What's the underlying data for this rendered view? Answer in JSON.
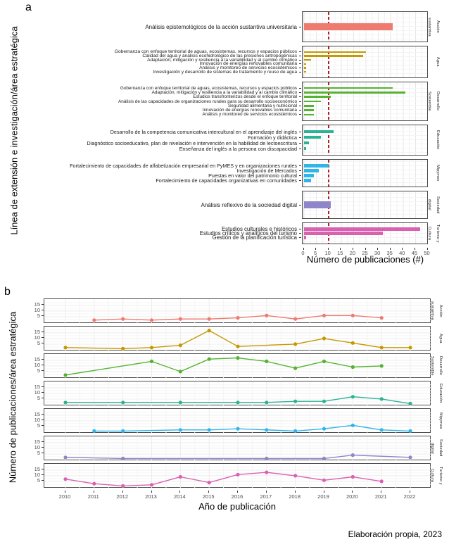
{
  "caption": "Elaboración propia, 2023",
  "chart_data": [
    {
      "id": "panel_a",
      "type": "bar",
      "orientation": "horizontal",
      "tag": "a",
      "ylabel": "Línea de extensión e investigación/área estratégica",
      "xlabel": "Número de publicaciones (#)",
      "xlim": [
        0,
        50
      ],
      "x_ticks": [
        0,
        5,
        10,
        15,
        20,
        25,
        30,
        35,
        40,
        45,
        50
      ],
      "grid": "on",
      "reference_line_x": 10,
      "reference_line_color": "#b01f24",
      "facets": [
        {
          "area": "Acción sustantiva",
          "color": "#ef7a70",
          "bars": [
            {
              "label": "Análisis epistemológicos de la acción sustantiva universitaria",
              "value": 36
            }
          ]
        },
        {
          "area": "Agua",
          "color": "#c49a00",
          "bars": [
            {
              "label": "Gobernanza con enfoque territorial de aguas, ecosistemas, recursos y espacios públicos",
              "value": 25
            },
            {
              "label": "Calidad del agua y análisis ecohidrológico de las presiones antropogénicas",
              "value": 24
            },
            {
              "label": "Adaptación, mitigación y resiliencia a la variabilidad y al cambio climático",
              "value": 3
            },
            {
              "label": "Innovación de energías renovables comunitaria",
              "value": 1
            },
            {
              "label": "Análisis y monitoreo de servicios ecosistémicos",
              "value": 1
            },
            {
              "label": "Investigación y desarrollo de sistemas de tratamiento y reuso de agua",
              "value": 1
            }
          ]
        },
        {
          "area": "Desarrollo Sostenible",
          "color": "#55b232",
          "bars": [
            {
              "label": "Gobernanza con enfoque territorial de aguas, ecosistemas, recursos y espacios públicos",
              "value": 36
            },
            {
              "label": "Adaptación, mitigación y resiliencia a la variabilidad y al cambio climático",
              "value": 41
            },
            {
              "label": "Estudios transfronterizos desde el enfoque territorial",
              "value": 11
            },
            {
              "label": "Análisis de las capacidades de organizaciones rurales para su desarrollo socioeconómico",
              "value": 7
            },
            {
              "label": "Seguridad alimentaria y nutricional",
              "value": 4
            },
            {
              "label": "Innovación de energías renovables comunitaria",
              "value": 4
            },
            {
              "label": "Análisis y monitoreo de servicios ecosistémicos",
              "value": 4
            }
          ]
        },
        {
          "area": "Educación",
          "color": "#2cb394",
          "bars": [
            {
              "label": "Desarrollo de la competencia comunicativa intercultural en el aprendizaje del inglés",
              "value": 12
            },
            {
              "label": "Formación y didáctica",
              "value": 7
            },
            {
              "label": "Diagnóstico socioeducativo, plan de nivelación e intervención en la habilidad de lectoescritura",
              "value": 2
            },
            {
              "label": "Enseñanza del inglés a la persona con discapacidad",
              "value": 1
            }
          ]
        },
        {
          "area": "Mipymes",
          "color": "#2fb5e8",
          "bars": [
            {
              "label": "Fortalecimiento de capacidades de alfabetización empresarial en PyMES y en organizaciones rurales",
              "value": 10
            },
            {
              "label": "Investigación de Mercados",
              "value": 6
            },
            {
              "label": "Puestas en valor del patrimonio cultural",
              "value": 4
            },
            {
              "label": "Fortalecimiento de capacidades organizativas en comunidades",
              "value": 3
            }
          ]
        },
        {
          "area": "Sociedad digital",
          "color": "#8e86c9",
          "bars": [
            {
              "label": "Análisis reflexivo de la sociedad digital",
              "value": 11
            }
          ]
        },
        {
          "area": "Turismo y Cultura",
          "color": "#d962b0",
          "bars": [
            {
              "label": "Estudios culturales e históricos",
              "value": 47
            },
            {
              "label": "Estudios críticos y analíticos del turismo",
              "value": 32
            },
            {
              "label": "Gestión de la planificación turística",
              "value": 1
            }
          ]
        }
      ]
    },
    {
      "id": "panel_b",
      "type": "line",
      "tag": "b",
      "ylabel": "Número de publicaciones/área estratégica",
      "xlabel": "Año de publicación",
      "x_ticks": [
        2010,
        2011,
        2012,
        2013,
        2014,
        2015,
        2016,
        2017,
        2018,
        2019,
        2020,
        2021,
        2022
      ],
      "y_ticks": [
        5,
        10,
        15
      ],
      "ylim": [
        0,
        18
      ],
      "grid": "on",
      "series": [
        {
          "area": "Acción sustantiva",
          "color": "#ef7a70",
          "points": [
            [
              2011,
              2
            ],
            [
              2012,
              3
            ],
            [
              2013,
              2
            ],
            [
              2014,
              3
            ],
            [
              2015,
              3
            ],
            [
              2016,
              4
            ],
            [
              2017,
              6
            ],
            [
              2018,
              3
            ],
            [
              2019,
              6
            ],
            [
              2020,
              6
            ],
            [
              2021,
              4
            ]
          ]
        },
        {
          "area": "Agua",
          "color": "#c49a00",
          "points": [
            [
              2010,
              2
            ],
            [
              2012,
              1
            ],
            [
              2013,
              2
            ],
            [
              2014,
              4
            ],
            [
              2015,
              17
            ],
            [
              2016,
              3
            ],
            [
              2018,
              5
            ],
            [
              2019,
              10
            ],
            [
              2020,
              6
            ],
            [
              2021,
              2
            ],
            [
              2022,
              2
            ]
          ]
        },
        {
          "area": "Desarrollo Sostenible",
          "color": "#55b232",
          "points": [
            [
              2010,
              2
            ],
            [
              2013,
              14
            ],
            [
              2014,
              5
            ],
            [
              2015,
              16
            ],
            [
              2016,
              17
            ],
            [
              2017,
              14
            ],
            [
              2018,
              8
            ],
            [
              2019,
              14
            ],
            [
              2020,
              9
            ],
            [
              2021,
              10
            ]
          ]
        },
        {
          "area": "Educación",
          "color": "#2cb394",
          "points": [
            [
              2010,
              2
            ],
            [
              2012,
              2
            ],
            [
              2014,
              2
            ],
            [
              2016,
              2
            ],
            [
              2017,
              2
            ],
            [
              2018,
              3
            ],
            [
              2019,
              3
            ],
            [
              2020,
              7
            ],
            [
              2021,
              5
            ],
            [
              2022,
              1
            ]
          ]
        },
        {
          "area": "Mipymes",
          "color": "#2fb5e8",
          "points": [
            [
              2011,
              1
            ],
            [
              2012,
              1
            ],
            [
              2014,
              2
            ],
            [
              2015,
              2
            ],
            [
              2016,
              3
            ],
            [
              2017,
              2
            ],
            [
              2018,
              1
            ],
            [
              2019,
              3
            ],
            [
              2020,
              6
            ],
            [
              2021,
              2
            ],
            [
              2022,
              1
            ]
          ]
        },
        {
          "area": "Sociedad digital",
          "color": "#8e86c9",
          "points": [
            [
              2010,
              2
            ],
            [
              2012,
              1
            ],
            [
              2017,
              1
            ],
            [
              2019,
              1
            ],
            [
              2020,
              4
            ],
            [
              2022,
              2
            ]
          ]
        },
        {
          "area": "Turismo y Cultura",
          "color": "#d962b0",
          "points": [
            [
              2010,
              7
            ],
            [
              2011,
              3
            ],
            [
              2012,
              1
            ],
            [
              2013,
              2
            ],
            [
              2014,
              9
            ],
            [
              2015,
              4
            ],
            [
              2016,
              11
            ],
            [
              2017,
              13
            ],
            [
              2018,
              10
            ],
            [
              2019,
              6
            ],
            [
              2020,
              9
            ],
            [
              2021,
              5
            ]
          ]
        }
      ]
    }
  ]
}
